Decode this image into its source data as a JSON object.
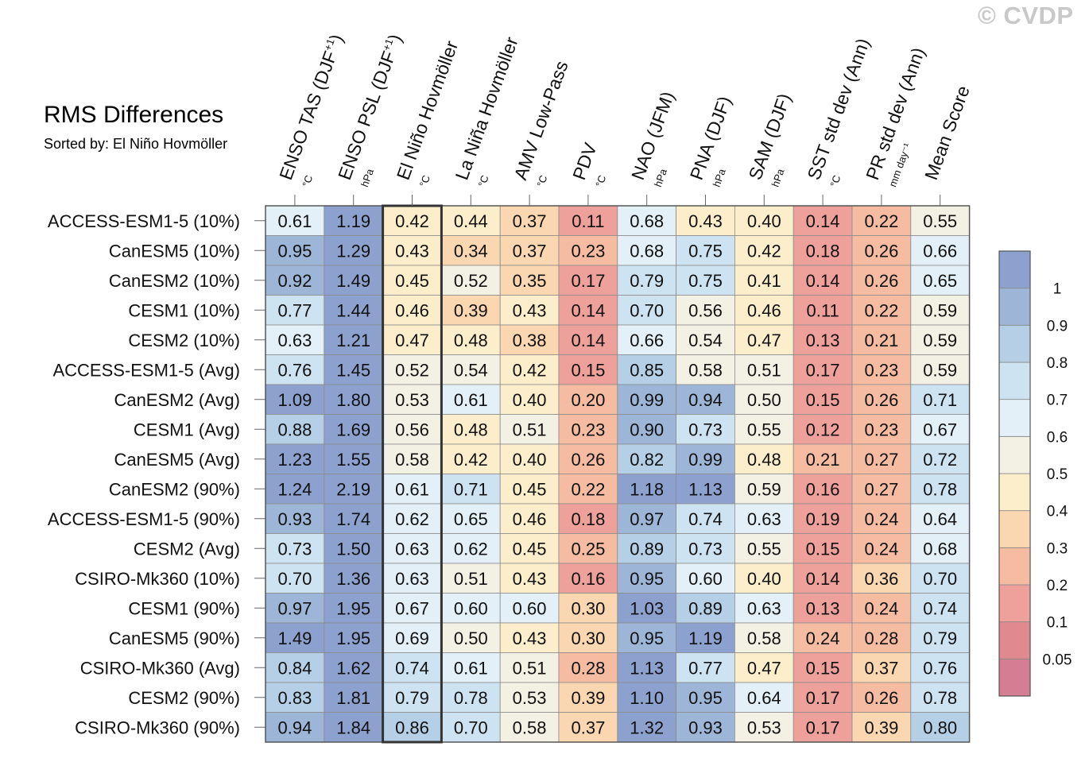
{
  "title": "RMS Differences",
  "subtitle": "Sorted by: El Niño Hovmöller",
  "watermark": "© CVDP",
  "chart_data": {
    "type": "heatmap",
    "title": "RMS Differences",
    "sorted_by_column": "El Niño Hovmöller",
    "columns": [
      {
        "label": "ENSO TAS (DJF",
        "sup": "+1",
        "close": ")",
        "unit": "°C"
      },
      {
        "label": "ENSO PSL (DJF",
        "sup": "+1",
        "close": ")",
        "unit": "hPa"
      },
      {
        "label": "El Niño Hovmöller",
        "sup": "",
        "close": "",
        "unit": "°C"
      },
      {
        "label": "La Niña Hovmöller",
        "sup": "",
        "close": "",
        "unit": "°C"
      },
      {
        "label": "AMV Low-Pass",
        "sup": "",
        "close": "",
        "unit": "°C"
      },
      {
        "label": "PDV",
        "sup": "",
        "close": "",
        "unit": "°C"
      },
      {
        "label": "NAO (JFM)",
        "sup": "",
        "close": "",
        "unit": "hPa"
      },
      {
        "label": "PNA (DJF)",
        "sup": "",
        "close": "",
        "unit": "hPa"
      },
      {
        "label": "SAM (DJF)",
        "sup": "",
        "close": "",
        "unit": "hPa"
      },
      {
        "label": "SST std dev (Ann)",
        "sup": "",
        "close": "",
        "unit": "°C"
      },
      {
        "label": "PR std dev (Ann)",
        "sup": "",
        "close": "",
        "unit": "mm day⁻¹"
      },
      {
        "label": "Mean Score",
        "sup": "",
        "close": "",
        "unit": ""
      }
    ],
    "rows": [
      {
        "name": "ACCESS-ESM1-5 (10%)",
        "values": [
          0.61,
          1.19,
          0.42,
          0.44,
          0.37,
          0.11,
          0.68,
          0.43,
          0.4,
          0.14,
          0.22,
          0.55
        ]
      },
      {
        "name": "CanESM5 (10%)",
        "values": [
          0.95,
          1.29,
          0.43,
          0.34,
          0.37,
          0.23,
          0.68,
          0.75,
          0.42,
          0.18,
          0.26,
          0.66
        ]
      },
      {
        "name": "CanESM2 (10%)",
        "values": [
          0.92,
          1.49,
          0.45,
          0.52,
          0.35,
          0.17,
          0.79,
          0.75,
          0.41,
          0.14,
          0.26,
          0.65
        ]
      },
      {
        "name": "CESM1 (10%)",
        "values": [
          0.77,
          1.44,
          0.46,
          0.39,
          0.43,
          0.14,
          0.7,
          0.56,
          0.46,
          0.11,
          0.22,
          0.59
        ]
      },
      {
        "name": "CESM2 (10%)",
        "values": [
          0.63,
          1.21,
          0.47,
          0.48,
          0.38,
          0.14,
          0.66,
          0.54,
          0.47,
          0.13,
          0.21,
          0.59
        ]
      },
      {
        "name": "ACCESS-ESM1-5 (Avg)",
        "values": [
          0.76,
          1.45,
          0.52,
          0.54,
          0.42,
          0.15,
          0.85,
          0.58,
          0.51,
          0.17,
          0.23,
          0.59
        ]
      },
      {
        "name": "CanESM2 (Avg)",
        "values": [
          1.09,
          1.8,
          0.53,
          0.61,
          0.4,
          0.2,
          0.99,
          0.94,
          0.5,
          0.15,
          0.26,
          0.71
        ]
      },
      {
        "name": "CESM1 (Avg)",
        "values": [
          0.88,
          1.69,
          0.56,
          0.48,
          0.51,
          0.23,
          0.9,
          0.73,
          0.55,
          0.12,
          0.23,
          0.67
        ]
      },
      {
        "name": "CanESM5 (Avg)",
        "values": [
          1.23,
          1.55,
          0.58,
          0.42,
          0.4,
          0.26,
          0.82,
          0.99,
          0.48,
          0.21,
          0.27,
          0.72
        ]
      },
      {
        "name": "CanESM2 (90%)",
        "values": [
          1.24,
          2.19,
          0.61,
          0.71,
          0.45,
          0.22,
          1.18,
          1.13,
          0.59,
          0.16,
          0.27,
          0.78
        ]
      },
      {
        "name": "ACCESS-ESM1-5 (90%)",
        "values": [
          0.93,
          1.74,
          0.62,
          0.65,
          0.46,
          0.18,
          0.97,
          0.74,
          0.63,
          0.19,
          0.24,
          0.64
        ]
      },
      {
        "name": "CESM2 (Avg)",
        "values": [
          0.73,
          1.5,
          0.63,
          0.62,
          0.45,
          0.25,
          0.89,
          0.73,
          0.55,
          0.15,
          0.24,
          0.68
        ]
      },
      {
        "name": "CSIRO-Mk360 (10%)",
        "values": [
          0.7,
          1.36,
          0.63,
          0.51,
          0.43,
          0.16,
          0.95,
          0.6,
          0.4,
          0.14,
          0.36,
          0.7
        ]
      },
      {
        "name": "CESM1 (90%)",
        "values": [
          0.97,
          1.95,
          0.67,
          0.6,
          0.6,
          0.3,
          1.03,
          0.89,
          0.63,
          0.13,
          0.24,
          0.74
        ]
      },
      {
        "name": "CanESM5 (90%)",
        "values": [
          1.49,
          1.95,
          0.69,
          0.5,
          0.43,
          0.3,
          0.95,
          1.19,
          0.58,
          0.24,
          0.28,
          0.79
        ]
      },
      {
        "name": "CSIRO-Mk360 (Avg)",
        "values": [
          0.84,
          1.62,
          0.74,
          0.61,
          0.51,
          0.28,
          1.13,
          0.77,
          0.47,
          0.15,
          0.37,
          0.76
        ]
      },
      {
        "name": "CESM2 (90%)",
        "values": [
          0.83,
          1.81,
          0.79,
          0.78,
          0.53,
          0.39,
          1.1,
          0.95,
          0.64,
          0.17,
          0.26,
          0.78
        ]
      },
      {
        "name": "CSIRO-Mk360 (90%)",
        "values": [
          0.94,
          1.84,
          0.86,
          0.7,
          0.58,
          0.37,
          1.32,
          0.93,
          0.53,
          0.17,
          0.39,
          0.8
        ]
      }
    ],
    "colorbar": {
      "levels": [
        0.05,
        0.1,
        0.2,
        0.3,
        0.4,
        0.5,
        0.6,
        0.7,
        0.8,
        0.9,
        1
      ],
      "tick_labels": [
        "0.05",
        "0.1",
        "0.2",
        "0.3",
        "0.4",
        "0.5",
        "0.6",
        "0.7",
        "0.8",
        "0.9",
        "1"
      ],
      "colors": [
        "#d47d93",
        "#e08a8f",
        "#eea09a",
        "#f6bca2",
        "#fad7b0",
        "#fdeecb",
        "#f3f1e4",
        "#e3f0f7",
        "#cde3f1",
        "#b5d0e6",
        "#9db6d8",
        "#8da1cf"
      ]
    }
  }
}
